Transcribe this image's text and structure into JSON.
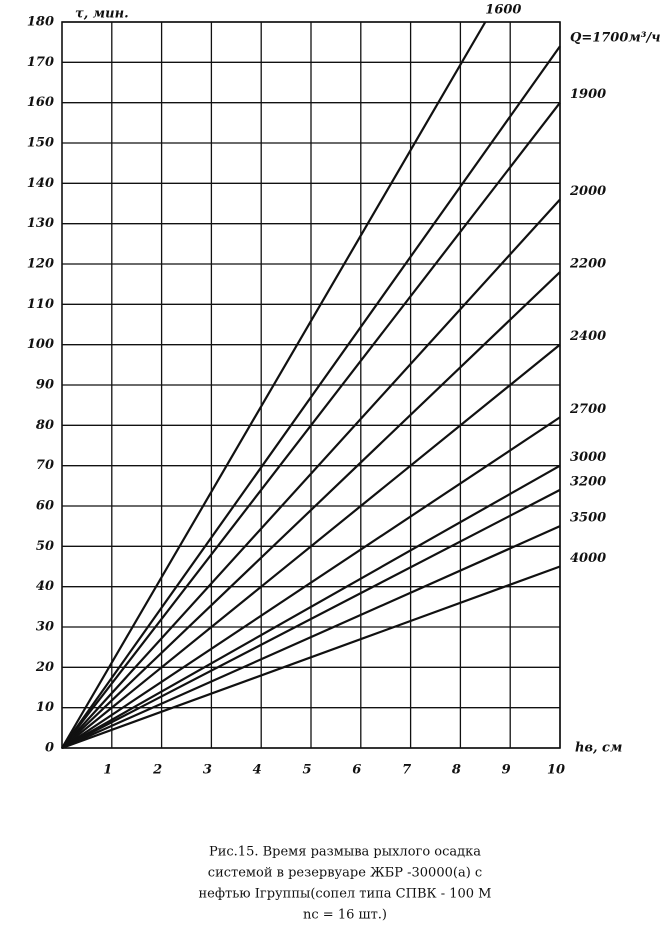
{
  "chart_data": {
    "type": "line",
    "y_label": "τ, мин.",
    "x_label": "hв, см",
    "xlim": [
      0,
      10
    ],
    "ylim": [
      0,
      180
    ],
    "xticks": [
      1,
      2,
      3,
      4,
      5,
      6,
      7,
      8,
      9,
      10
    ],
    "yticks": [
      0,
      10,
      20,
      30,
      40,
      50,
      60,
      70,
      80,
      90,
      100,
      110,
      120,
      130,
      140,
      150,
      160,
      170,
      180
    ],
    "grid": true,
    "color": "#111",
    "series": [
      {
        "name": "1600",
        "x": [
          0,
          8.5
        ],
        "values": [
          0,
          180
        ]
      },
      {
        "name": "Q=1700м³/ч",
        "x": [
          0,
          10
        ],
        "values": [
          0,
          174
        ]
      },
      {
        "name": "1900",
        "x": [
          0,
          10
        ],
        "values": [
          0,
          160
        ]
      },
      {
        "name": "2000",
        "x": [
          0,
          10
        ],
        "values": [
          0,
          136
        ]
      },
      {
        "name": "2200",
        "x": [
          0,
          10
        ],
        "values": [
          0,
          118
        ]
      },
      {
        "name": "2400",
        "x": [
          0,
          10
        ],
        "values": [
          0,
          100
        ]
      },
      {
        "name": "2700",
        "x": [
          0,
          10
        ],
        "values": [
          0,
          82
        ]
      },
      {
        "name": "3000",
        "x": [
          0,
          10
        ],
        "values": [
          0,
          70
        ]
      },
      {
        "name": "3200",
        "x": [
          0,
          10
        ],
        "values": [
          0,
          64
        ]
      },
      {
        "name": "3500",
        "x": [
          0,
          10
        ],
        "values": [
          0,
          55
        ]
      },
      {
        "name": "4000",
        "x": [
          0,
          10
        ],
        "values": [
          0,
          45
        ]
      }
    ],
    "caption": [
      "Рис.15.    Время размыва рыхлого осадка",
      "системой в резервуаре ЖБР -30000(а)  с",
      "нефтью Iгруппы(сопел типа СПВК - 100 М",
      "nс = 16 шт.)"
    ]
  }
}
